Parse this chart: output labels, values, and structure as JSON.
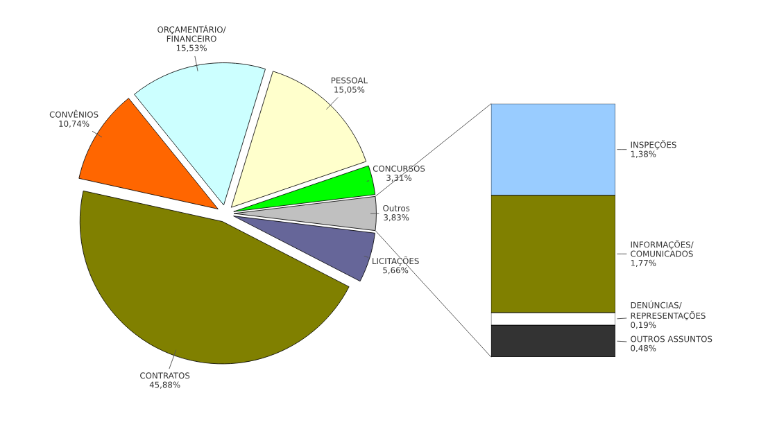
{
  "chart_data": [
    {
      "type": "pie",
      "categories": [
        "Outros",
        "CONCURSOS",
        "PESSOAL",
        "ORÇAMENTÁRIO/\nFINANCEIRO",
        "CONVÊNIOS",
        "CONTRATOS",
        "LICITAÇÕES"
      ],
      "values": [
        3.83,
        3.31,
        15.05,
        15.53,
        10.74,
        45.88,
        5.66
      ],
      "value_labels": [
        "3,83%",
        "3,31%",
        "15,05%",
        "15,53%",
        "10,74%",
        "45,88%",
        "5,66%"
      ],
      "colors": [
        "#c0c0c0",
        "#00ff00",
        "#ffffcc",
        "#ccffff",
        "#ff6600",
        "#808000",
        "#666699"
      ]
    },
    {
      "type": "bar",
      "stacked": true,
      "categories": [
        null
      ],
      "series": [
        {
          "name": "OUTROS ASSUNTOS",
          "color": "#333333",
          "values": [
            0.48
          ],
          "value_labels": [
            "0,48%"
          ]
        },
        {
          "name": "DENÚNCIAS/\nREPRESENTAÇÕES",
          "color": "#ffffff",
          "values": [
            0.19
          ],
          "value_labels": [
            "0,19%"
          ]
        },
        {
          "name": "INFORMAÇÕES/\nCOMUNICADOS",
          "color": "#808000",
          "values": [
            1.77
          ],
          "value_labels": [
            "1,77%"
          ]
        },
        {
          "name": "INSPEÇÕES",
          "color": "#99ccff",
          "values": [
            1.38
          ],
          "value_labels": [
            "1,38%"
          ]
        }
      ]
    }
  ]
}
